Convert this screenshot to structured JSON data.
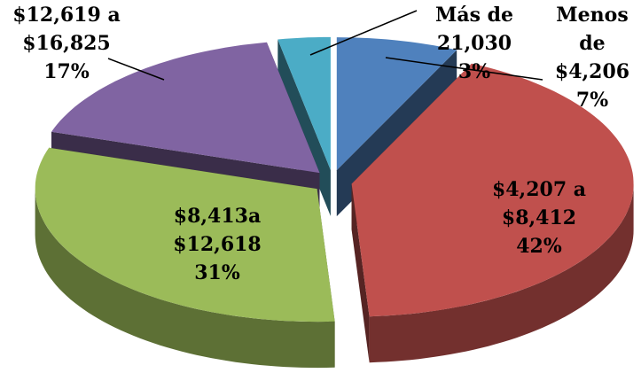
{
  "chart_data": {
    "type": "pie3d",
    "categories": [
      "Menos\nde\n$4,206",
      "$4,207 a\n$8,412",
      "$8,413a\n$12,618",
      "$12,619 a\n$16,825",
      "Más de\n21,030"
    ],
    "values": [
      7,
      42,
      31,
      17,
      3
    ],
    "value_labels": [
      "7%",
      "42%",
      "31%",
      "17%",
      "3%"
    ],
    "colors": [
      "#4f81bd",
      "#c0504d",
      "#9bbb59",
      "#8064a2",
      "#4bacc6"
    ]
  }
}
